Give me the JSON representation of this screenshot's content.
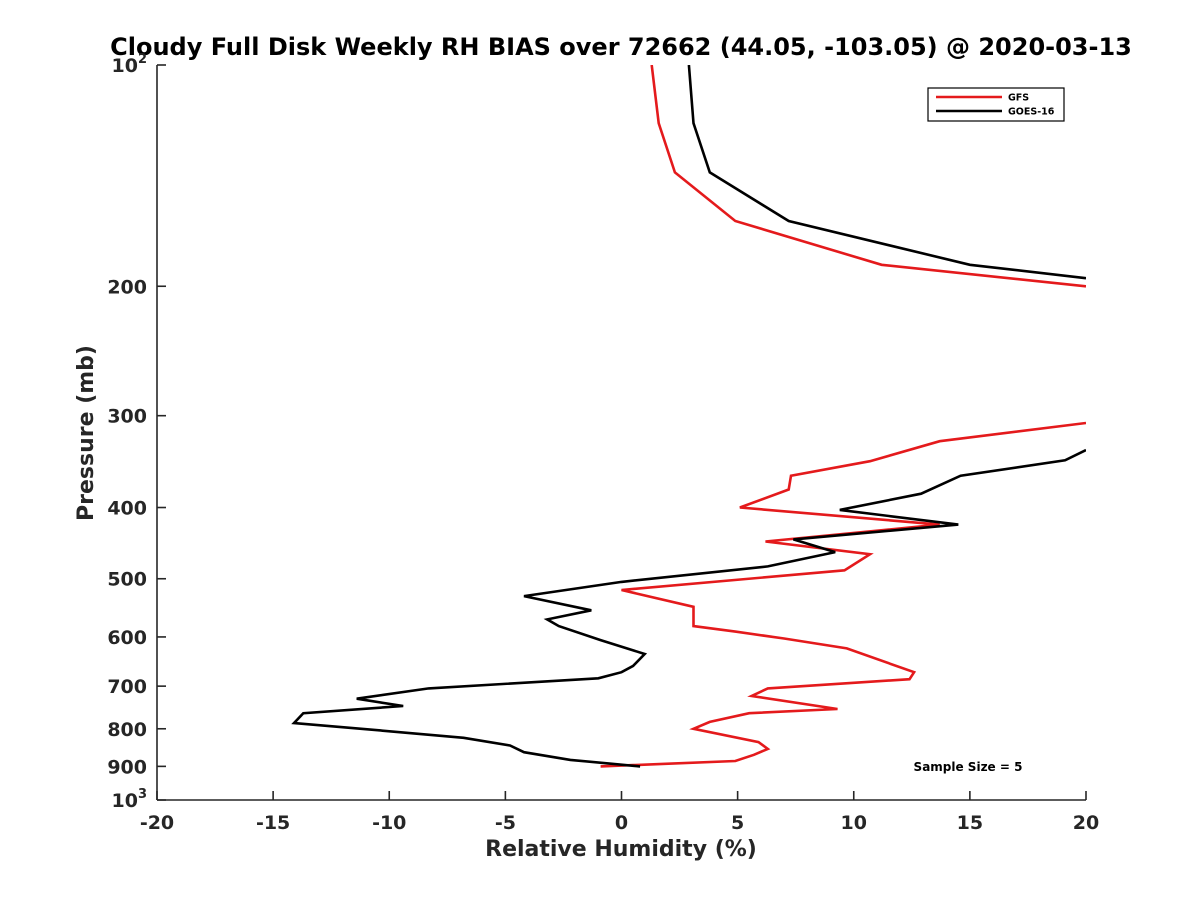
{
  "chart_data": {
    "type": "line",
    "title": "Cloudy Full Disk Weekly RH BIAS over 72662 (44.05, -103.05) @ 2020-03-13",
    "xlabel": "Relative Humidity (%)",
    "ylabel": "Pressure (mb)",
    "xlim": [
      -20,
      20
    ],
    "ylim": [
      100,
      1000
    ],
    "y_scale": "log",
    "y_reversed": true,
    "grid": false,
    "legend_position": "top-right",
    "annotation": "Sample Size = 5",
    "x_ticks": [
      {
        "value": -20,
        "label": "-20"
      },
      {
        "value": -15,
        "label": "-15"
      },
      {
        "value": -10,
        "label": "-10"
      },
      {
        "value": -5,
        "label": "-5"
      },
      {
        "value": 0,
        "label": "0"
      },
      {
        "value": 5,
        "label": "5"
      },
      {
        "value": 10,
        "label": "10"
      },
      {
        "value": 15,
        "label": "15"
      },
      {
        "value": 20,
        "label": "20"
      }
    ],
    "y_ticks": [
      {
        "value": 100,
        "label": "10",
        "sup": "2"
      },
      {
        "value": 200,
        "label": "200"
      },
      {
        "value": 300,
        "label": "300"
      },
      {
        "value": 400,
        "label": "400"
      },
      {
        "value": 500,
        "label": "500"
      },
      {
        "value": 600,
        "label": "600"
      },
      {
        "value": 700,
        "label": "700"
      },
      {
        "value": 800,
        "label": "800"
      },
      {
        "value": 900,
        "label": "900"
      },
      {
        "value": 1000,
        "label": "10",
        "sup": "3"
      }
    ],
    "series": [
      {
        "name": "GFS",
        "color": "#e41a1c",
        "segments": [
          [
            [
              1.3,
              100
            ],
            [
              1.6,
              120
            ],
            [
              2.3,
              140
            ],
            [
              4.9,
              163
            ],
            [
              11.2,
              187
            ],
            [
              20,
              200
            ]
          ],
          [
            [
              20,
              307
            ],
            [
              13.7,
              325
            ],
            [
              10.7,
              346
            ],
            [
              7.3,
              362
            ],
            [
              7.2,
              378
            ],
            [
              5.1,
              400
            ],
            [
              13.7,
              422
            ],
            [
              6.2,
              445
            ],
            [
              10.7,
              463
            ],
            [
              9.6,
              487
            ],
            [
              0,
              518
            ],
            [
              3.1,
              546
            ],
            [
              3.1,
              580
            ],
            [
              4.9,
              590
            ],
            [
              7.0,
              603
            ],
            [
              9.7,
              622
            ],
            [
              12.6,
              670
            ],
            [
              12.4,
              685
            ],
            [
              6.3,
              705
            ],
            [
              5.6,
              722
            ],
            [
              9.3,
              752
            ],
            [
              5.5,
              762
            ],
            [
              3.8,
              783
            ],
            [
              3.1,
              800
            ],
            [
              5.9,
              834
            ],
            [
              6.3,
              852
            ],
            [
              5.7,
              868
            ],
            [
              4.9,
              885
            ],
            [
              -0.9,
              900
            ]
          ]
        ]
      },
      {
        "name": "GOES-16",
        "color": "#000000",
        "segments": [
          [
            [
              2.9,
              100
            ],
            [
              3.1,
              120
            ],
            [
              3.8,
              140
            ],
            [
              7.2,
              163
            ],
            [
              15,
              187
            ],
            [
              20,
              195
            ]
          ],
          [
            [
              20,
              334
            ],
            [
              19.1,
              345
            ],
            [
              14.6,
              362
            ],
            [
              12.9,
              383
            ],
            [
              9.4,
              403
            ],
            [
              14.5,
              422
            ],
            [
              7.4,
              442
            ],
            [
              9.2,
              460
            ],
            [
              6.3,
              481
            ],
            [
              0,
              505
            ],
            [
              -4.2,
              528
            ],
            [
              -1.3,
              552
            ],
            [
              -3.2,
              568
            ],
            [
              -2.7,
              580
            ],
            [
              -0.9,
              606
            ],
            [
              1.0,
              633
            ],
            [
              0.5,
              657
            ],
            [
              0,
              670
            ],
            [
              -1,
              683
            ],
            [
              -8.3,
              705
            ],
            [
              -11.4,
              728
            ],
            [
              -9.4,
              745
            ],
            [
              -13.7,
              762
            ],
            [
              -14.1,
              786
            ],
            [
              -11.2,
              800
            ],
            [
              -6.8,
              823
            ],
            [
              -4.8,
              843
            ],
            [
              -4.2,
              861
            ],
            [
              -2.2,
              882
            ],
            [
              0.8,
              900
            ]
          ]
        ]
      }
    ]
  }
}
